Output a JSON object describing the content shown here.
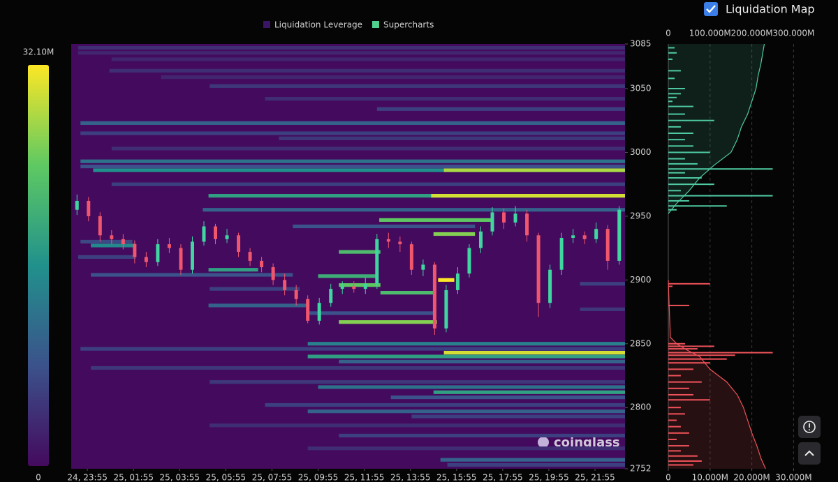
{
  "chart_data": {
    "type": "liquidation-heatmap",
    "legend": [
      {
        "name": "Liquidation Leverage",
        "color": "#3a1563"
      },
      {
        "name": "Supercharts",
        "color": "#4fd08c"
      }
    ],
    "colorbar": {
      "lim": [
        0,
        32.1
      ],
      "ticks": [
        0,
        {
          "value": 32.1,
          "label": "32.10M"
        }
      ],
      "colormap": [
        "#440a5e",
        "#3b528b",
        "#21918c",
        "#5ec962",
        "#fde725"
      ]
    },
    "xlim": [
      0,
      24
    ],
    "xticks": [
      {
        "value": 0.7,
        "label": "24, 23:55"
      },
      {
        "value": 2.7,
        "label": "25, 01:55"
      },
      {
        "value": 4.7,
        "label": "25, 03:55"
      },
      {
        "value": 6.7,
        "label": "25, 05:55"
      },
      {
        "value": 8.7,
        "label": "25, 07:55"
      },
      {
        "value": 10.7,
        "label": "25, 09:55"
      },
      {
        "value": 12.7,
        "label": "25, 11:55"
      },
      {
        "value": 14.7,
        "label": "25, 13:55"
      },
      {
        "value": 16.7,
        "label": "25, 15:55"
      },
      {
        "value": 18.7,
        "label": "25, 17:55"
      },
      {
        "value": 20.7,
        "label": "25, 19:55"
      },
      {
        "value": 22.7,
        "label": "25, 21:55"
      }
    ],
    "ylim": [
      2752,
      3085
    ],
    "yticks": [
      2752,
      2800,
      2850,
      2900,
      2950,
      3000,
      3050,
      3085
    ],
    "candles": {
      "up_color": "#3fd6a0",
      "down_color": "#f0566c",
      "x": [
        0.25,
        0.75,
        1.25,
        1.75,
        2.25,
        2.75,
        3.25,
        3.75,
        4.25,
        4.75,
        5.25,
        5.75,
        6.25,
        6.75,
        7.25,
        7.75,
        8.25,
        8.75,
        9.25,
        9.75,
        10.25,
        10.75,
        11.25,
        11.75,
        12.25,
        12.75,
        13.25,
        13.75,
        14.25,
        14.75,
        15.25,
        15.75,
        16.25,
        16.75,
        17.25,
        17.75,
        18.25,
        18.75,
        19.25,
        19.75,
        20.25,
        20.75,
        21.25,
        21.75,
        22.25,
        22.75,
        23.25,
        23.75
      ],
      "open": [
        2955,
        2962,
        2950,
        2935,
        2932,
        2928,
        2918,
        2914,
        2928,
        2925,
        2908,
        2930,
        2942,
        2932,
        2935,
        2922,
        2915,
        2910,
        2900,
        2892,
        2885,
        2868,
        2882,
        2893,
        2895,
        2893,
        2897,
        2932,
        2930,
        2928,
        2908,
        2912,
        2862,
        2892,
        2905,
        2925,
        2938,
        2953,
        2945,
        2952,
        2935,
        2882,
        2908,
        2933,
        2935,
        2932,
        2940,
        2915
      ],
      "high": [
        2967,
        2965,
        2953,
        2939,
        2936,
        2931,
        2922,
        2932,
        2933,
        2928,
        2934,
        2946,
        2944,
        2940,
        2937,
        2925,
        2918,
        2913,
        2905,
        2896,
        2888,
        2886,
        2897,
        2899,
        2899,
        2902,
        2936,
        2937,
        2934,
        2930,
        2916,
        2914,
        2896,
        2910,
        2928,
        2942,
        2957,
        2956,
        2958,
        2955,
        2937,
        2912,
        2937,
        2940,
        2938,
        2945,
        2943,
        2958
      ],
      "low": [
        2951,
        2946,
        2930,
        2928,
        2924,
        2913,
        2910,
        2911,
        2921,
        2904,
        2905,
        2927,
        2928,
        2929,
        2918,
        2911,
        2906,
        2896,
        2888,
        2880,
        2866,
        2865,
        2879,
        2889,
        2890,
        2889,
        2893,
        2925,
        2922,
        2904,
        2903,
        2857,
        2859,
        2889,
        2902,
        2921,
        2935,
        2940,
        2942,
        2930,
        2871,
        2878,
        2904,
        2929,
        2928,
        2929,
        2908,
        2912
      ],
      "close": [
        2962,
        2950,
        2935,
        2932,
        2928,
        2918,
        2914,
        2928,
        2925,
        2908,
        2930,
        2942,
        2932,
        2935,
        2922,
        2915,
        2910,
        2900,
        2892,
        2885,
        2868,
        2882,
        2893,
        2895,
        2893,
        2897,
        2932,
        2930,
        2928,
        2908,
        2912,
        2862,
        2892,
        2905,
        2925,
        2938,
        2953,
        2945,
        2952,
        2935,
        2882,
        2908,
        2933,
        2935,
        2932,
        2940,
        2915,
        2955
      ]
    },
    "bands": [
      {
        "price": 3082,
        "start": 0.3,
        "end": 24,
        "value": 4
      },
      {
        "price": 3078,
        "start": 0.3,
        "end": 24,
        "value": 3
      },
      {
        "price": 3073,
        "start": 1.75,
        "end": 24,
        "value": 3
      },
      {
        "price": 3064,
        "start": 1.65,
        "end": 24,
        "value": 4
      },
      {
        "price": 3059,
        "start": 3.9,
        "end": 24,
        "value": 3
      },
      {
        "price": 3052,
        "start": 6,
        "end": 24,
        "value": 5
      },
      {
        "price": 3042,
        "start": 8.4,
        "end": 24,
        "value": 4
      },
      {
        "price": 3034,
        "start": 13.25,
        "end": 24,
        "value": 6
      },
      {
        "price": 3023,
        "start": 0.4,
        "end": 24,
        "value": 10
      },
      {
        "price": 3015,
        "start": 0.4,
        "end": 24,
        "value": 6
      },
      {
        "price": 3011,
        "start": 9,
        "end": 24,
        "value": 5
      },
      {
        "price": 3003,
        "start": 1.75,
        "end": 24,
        "value": 4
      },
      {
        "price": 2993,
        "start": 0.4,
        "end": 24,
        "value": 12
      },
      {
        "price": 2989,
        "start": 0.4,
        "end": 24,
        "value": 8
      },
      {
        "price": 2986,
        "start": 0.95,
        "end": 24,
        "value": 16
      },
      {
        "price": 2986,
        "start": 16.15,
        "end": 24,
        "value": 28
      },
      {
        "price": 2975,
        "start": 1.75,
        "end": 24,
        "value": 6
      },
      {
        "price": 2966,
        "start": 5.95,
        "end": 24,
        "value": 18
      },
      {
        "price": 2966,
        "start": 15.6,
        "end": 24,
        "value": 30
      },
      {
        "price": 2955,
        "start": 5.7,
        "end": 24,
        "value": 10
      },
      {
        "price": 2947,
        "start": 13.35,
        "end": 18.25,
        "value": 24
      },
      {
        "price": 2942,
        "start": 9.6,
        "end": 17.5,
        "value": 8
      },
      {
        "price": 2936,
        "start": 15.7,
        "end": 17.5,
        "value": 26
      },
      {
        "price": 2930,
        "start": 0.4,
        "end": 2.65,
        "value": 7
      },
      {
        "price": 2927,
        "start": 0.85,
        "end": 2.8,
        "value": 15
      },
      {
        "price": 2922,
        "start": 11.6,
        "end": 13.4,
        "value": 22
      },
      {
        "price": 2918,
        "start": 0.3,
        "end": 2.8,
        "value": 6
      },
      {
        "price": 2908,
        "start": 5.95,
        "end": 8.1,
        "value": 18
      },
      {
        "price": 2903,
        "start": 10.7,
        "end": 13.25,
        "value": 20
      },
      {
        "price": 2904,
        "start": 0.85,
        "end": 9.6,
        "value": 8
      },
      {
        "price": 2893,
        "start": 6,
        "end": 9.9,
        "value": 6
      },
      {
        "price": 2896,
        "start": 11.6,
        "end": 13.4,
        "value": 24
      },
      {
        "price": 2890,
        "start": 13.4,
        "end": 15.7,
        "value": 22
      },
      {
        "price": 2880,
        "start": 5.95,
        "end": 10.25,
        "value": 10
      },
      {
        "price": 2874,
        "start": 10.25,
        "end": 15.7,
        "value": 8
      },
      {
        "price": 2867,
        "start": 11.6,
        "end": 15.85,
        "value": 26
      },
      {
        "price": 2900,
        "start": 15.9,
        "end": 16.6,
        "value": 32
      },
      {
        "price": 2897,
        "start": 22.05,
        "end": 24,
        "value": 6
      },
      {
        "price": 2877,
        "start": 22.05,
        "end": 24,
        "value": 5
      },
      {
        "price": 2850,
        "start": 10.25,
        "end": 24,
        "value": 14
      },
      {
        "price": 2846,
        "start": 0.4,
        "end": 24,
        "value": 6
      },
      {
        "price": 2843,
        "start": 16.15,
        "end": 24,
        "value": 30
      },
      {
        "price": 2840,
        "start": 10.25,
        "end": 24,
        "value": 18
      },
      {
        "price": 2836,
        "start": 11.6,
        "end": 24,
        "value": 10
      },
      {
        "price": 2831,
        "start": 0.85,
        "end": 24,
        "value": 5
      },
      {
        "price": 2820,
        "start": 6,
        "end": 24,
        "value": 5
      },
      {
        "price": 2816,
        "start": 10.7,
        "end": 24,
        "value": 12
      },
      {
        "price": 2812,
        "start": 15.7,
        "end": 24,
        "value": 18
      },
      {
        "price": 2808,
        "start": 13.85,
        "end": 24,
        "value": 8
      },
      {
        "price": 2802,
        "start": 8.4,
        "end": 24,
        "value": 6
      },
      {
        "price": 2797,
        "start": 10.25,
        "end": 24,
        "value": 10
      },
      {
        "price": 2793,
        "start": 14.75,
        "end": 24,
        "value": 6
      },
      {
        "price": 2786,
        "start": 6,
        "end": 24,
        "value": 4
      },
      {
        "price": 2778,
        "start": 11.6,
        "end": 24,
        "value": 6
      },
      {
        "price": 2768,
        "start": 10.25,
        "end": 24,
        "value": 4
      },
      {
        "price": 2759,
        "start": 16,
        "end": 24,
        "value": 10
      },
      {
        "price": 2755,
        "start": 16.3,
        "end": 24,
        "value": 6
      }
    ],
    "side": {
      "xlim": [
        0,
        30.5
      ],
      "xticks": [
        0,
        {
          "value": 10,
          "label": "10.000M"
        },
        {
          "value": 20,
          "label": "20.000M"
        },
        {
          "value": 30,
          "label": "30.000M"
        }
      ],
      "x2lim": [
        0,
        305
      ],
      "x2ticks": [
        0,
        {
          "value": 100,
          "label": "100.000M"
        },
        {
          "value": 200,
          "label": "200.000M"
        },
        {
          "value": 300,
          "label": "300.000M"
        }
      ],
      "short": {
        "color": "#4ec9a2",
        "prices": [
          3082,
          3078,
          3073,
          3064,
          3058,
          3050,
          3046,
          3043,
          3040,
          3036,
          3030,
          3025,
          3020,
          3015,
          3010,
          3005,
          3000,
          2995,
          2991,
          2987,
          2984,
          2980,
          2975,
          2970,
          2966,
          2962,
          2958,
          2955
        ],
        "values": [
          1.5,
          2,
          1,
          3,
          1.5,
          4,
          3,
          2,
          1,
          6,
          4,
          11,
          3,
          6,
          4,
          6,
          10,
          4,
          7,
          25,
          4,
          8,
          11,
          3,
          25,
          5,
          14,
          2
        ],
        "cumulative": {
          "prices": [
            2952,
            2960,
            2970,
            2980,
            2990,
            3000,
            3010,
            3020,
            3030,
            3040,
            3050,
            3060,
            3070,
            3085
          ],
          "values": [
            0,
            20,
            50,
            75,
            110,
            150,
            165,
            175,
            190,
            200,
            210,
            215,
            222,
            230
          ]
        }
      },
      "long": {
        "color": "#f0525a",
        "prices": [
          2897,
          2895,
          2880,
          2850,
          2848,
          2846,
          2843,
          2841,
          2838,
          2835,
          2830,
          2825,
          2820,
          2815,
          2810,
          2806,
          2800,
          2795,
          2790,
          2785,
          2780,
          2775,
          2770,
          2766,
          2762,
          2758,
          2755
        ],
        "values": [
          10,
          1,
          5,
          4,
          11,
          7,
          25,
          16,
          14,
          10,
          6,
          3,
          8,
          5,
          6,
          10,
          3,
          4,
          2,
          3,
          5,
          2,
          5,
          3,
          7,
          8,
          6
        ],
        "cumulative": {
          "prices": [
            2900,
            2880,
            2855,
            2850,
            2845,
            2840,
            2830,
            2820,
            2810,
            2800,
            2790,
            2780,
            2770,
            2760,
            2752
          ],
          "values": [
            0,
            2,
            5,
            20,
            45,
            75,
            100,
            140,
            165,
            180,
            190,
            200,
            212,
            222,
            233
          ]
        }
      }
    }
  },
  "controls": {
    "toggle": "Liquidation Map"
  },
  "watermark": "coinglass"
}
